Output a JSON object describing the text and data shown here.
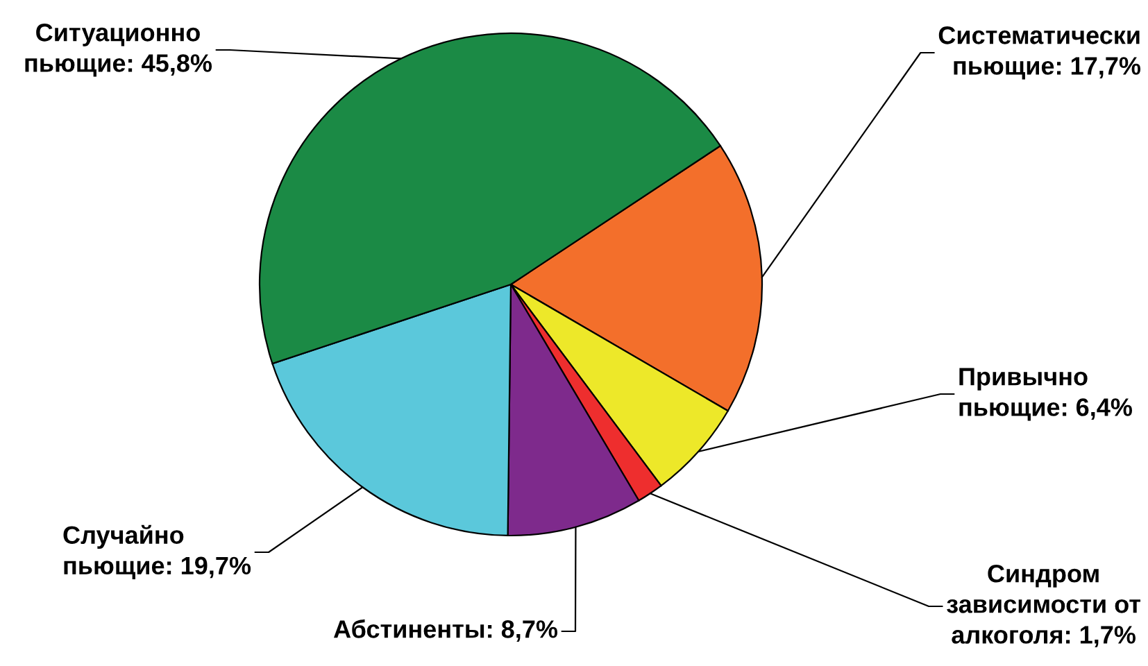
{
  "chart_data": {
    "type": "pie",
    "categories": [
      "Систематически\nпьющие",
      "Привычно\nпьющие",
      "Синдром\nзависимости от\nалкоголя",
      "Абстиненты",
      "Случайно\nпьющие",
      "Ситуационно\nпьющие"
    ],
    "values": [
      17.7,
      6.4,
      1.7,
      8.7,
      19.7,
      45.8
    ],
    "value_labels": [
      "17,7%",
      "6,4%",
      "1,7%",
      "8,7%",
      "19,7%",
      "45,8%"
    ],
    "colors": [
      "#f36f2b",
      "#ede829",
      "#ee2e2e",
      "#7e2a8c",
      "#5bc8db",
      "#1b8a45"
    ]
  }
}
